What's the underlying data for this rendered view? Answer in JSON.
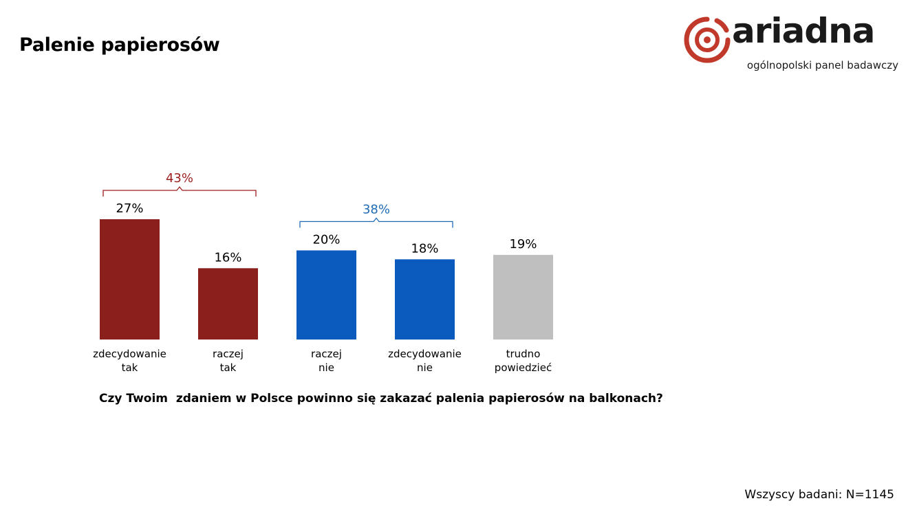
{
  "page": {
    "title": "Palenie papierosów",
    "question": "Czy Twoim  zdaniem w Polsce powinno się zakazać palenia papierosów na balkonach?",
    "sample_note": "Wszyscy badani: N=1145"
  },
  "logo": {
    "name": "ariadna",
    "tagline": "ogólnopolski panel badawczy",
    "color": "#c0392b"
  },
  "chart_data": {
    "type": "bar",
    "categories": [
      [
        "zdecydowanie",
        "tak"
      ],
      [
        "raczej",
        "tak"
      ],
      [
        "raczej",
        "nie"
      ],
      [
        "zdecydowanie",
        "nie"
      ],
      [
        "trudno",
        "powiedzieć"
      ]
    ],
    "values": [
      27,
      16,
      20,
      18,
      19
    ],
    "value_labels": [
      "27%",
      "16%",
      "20%",
      "18%",
      "19%"
    ],
    "colors": [
      "#8b1f1c",
      "#8b1f1c",
      "#0a5bbd",
      "#0a5bbd",
      "#bfbfbf"
    ],
    "groups": [
      {
        "label": "43%",
        "from": 0,
        "to": 1,
        "color": "#9b1c1c"
      },
      {
        "label": "38%",
        "from": 2,
        "to": 3,
        "color": "#1f6bb5"
      }
    ],
    "ylim": [
      0,
      27
    ],
    "grid": false,
    "legend": "none"
  }
}
